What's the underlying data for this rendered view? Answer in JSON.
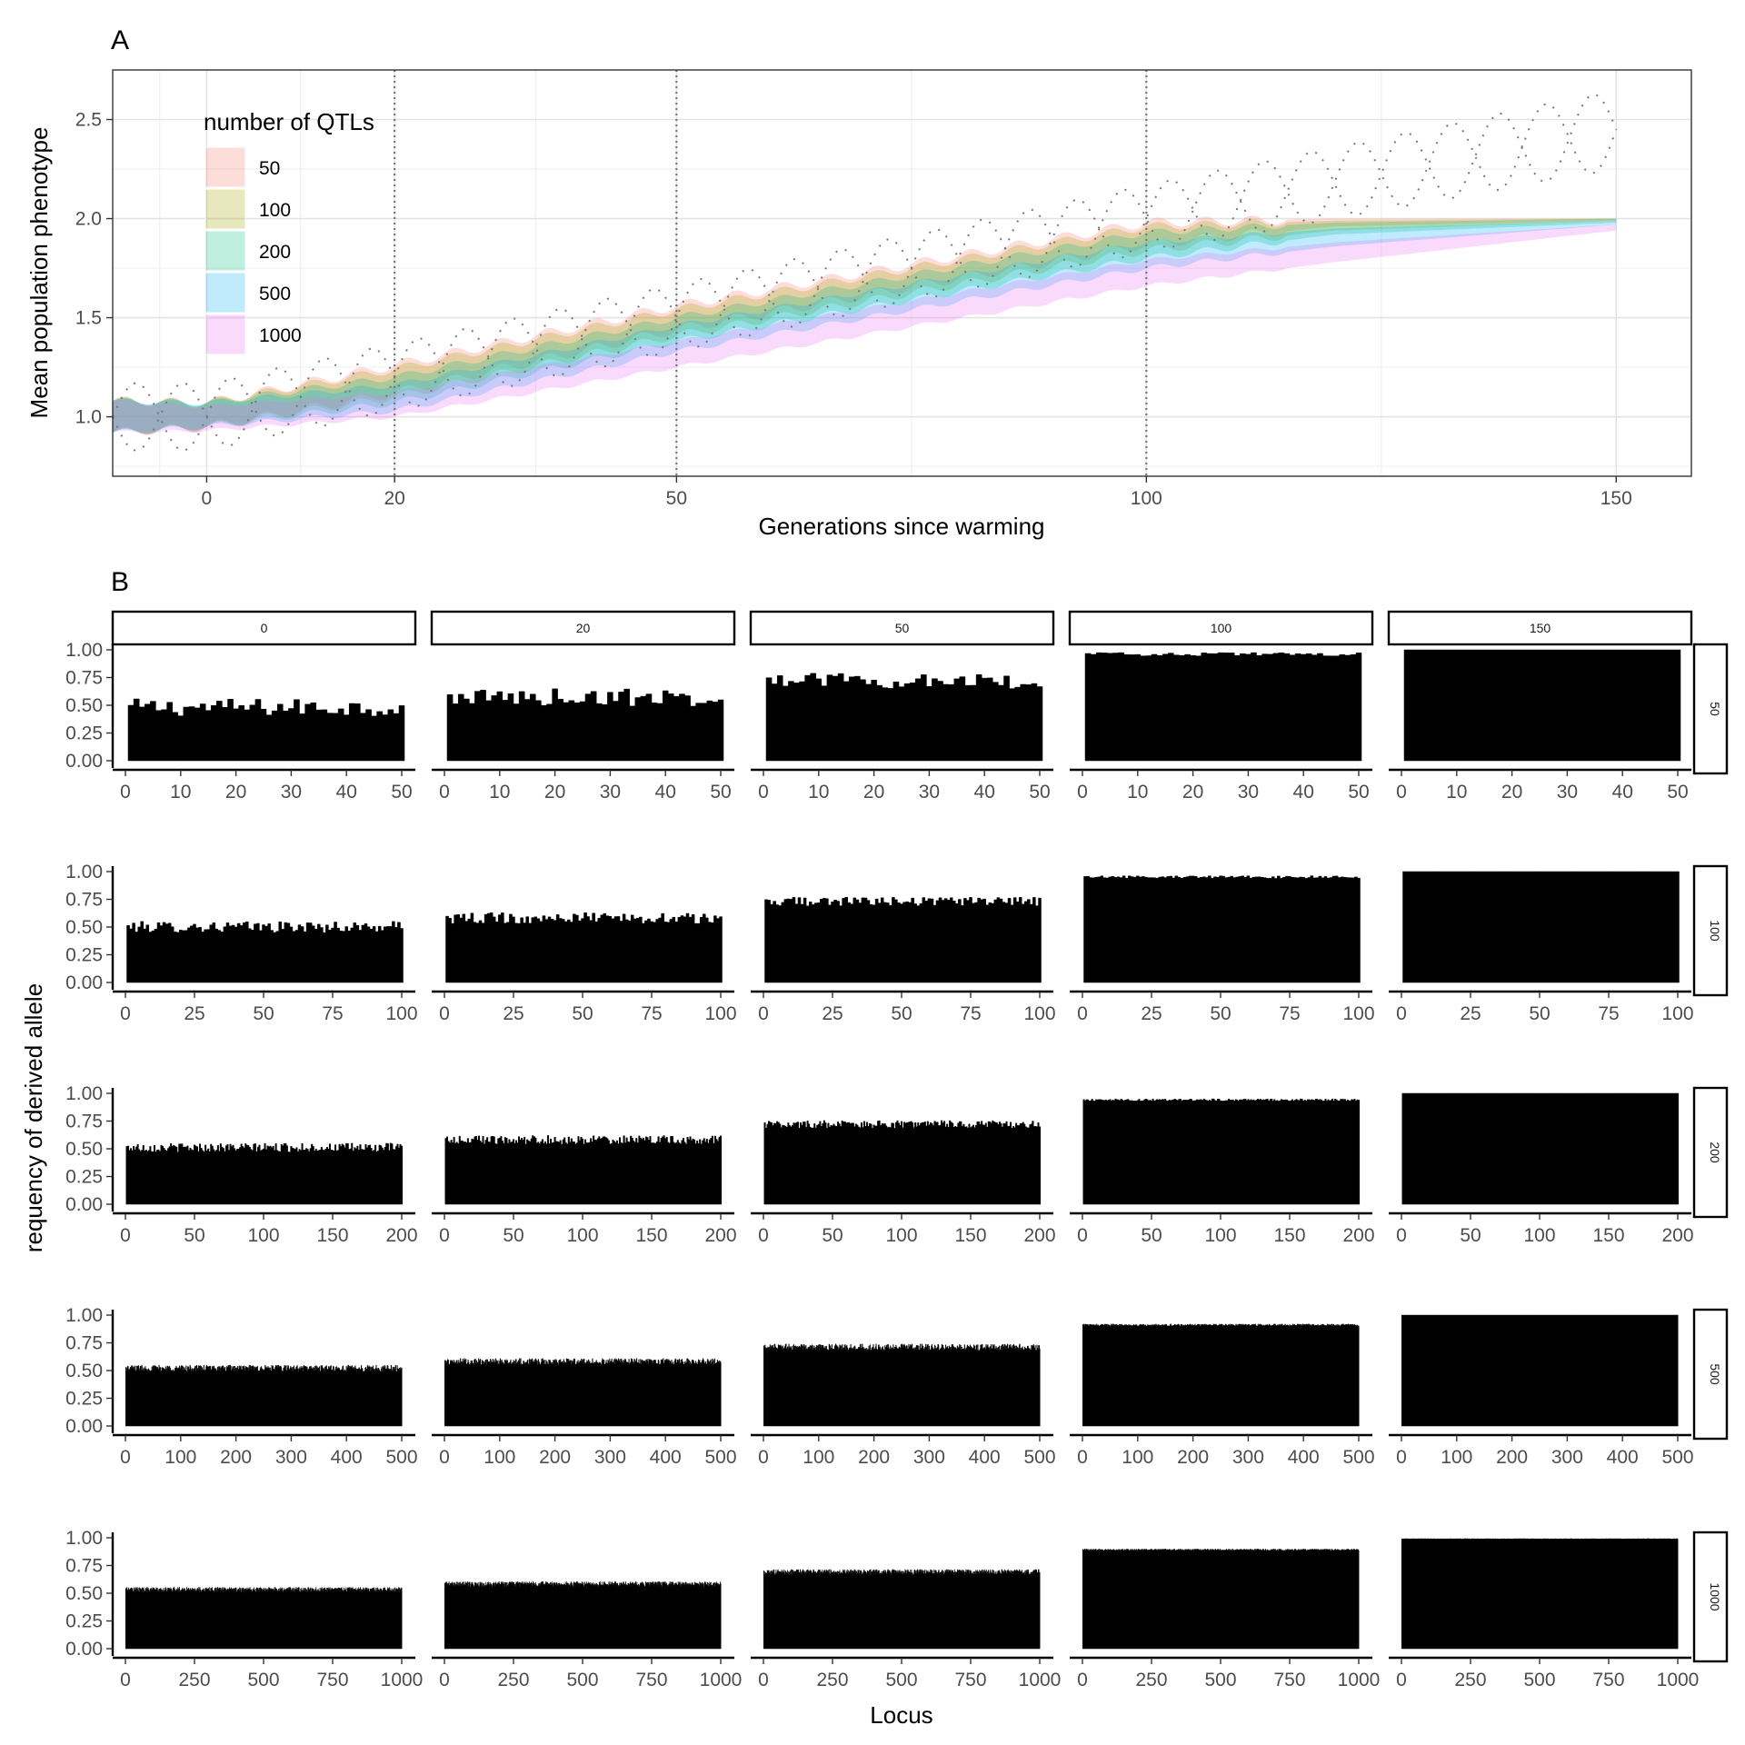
{
  "chart_data": [
    {
      "type": "area",
      "panel_label": "A",
      "xlabel": "Generations since warming",
      "ylabel": "Mean population phenotype",
      "xlim": [
        -10,
        158
      ],
      "ylim": [
        0.7,
        2.75
      ],
      "x_ticks": [
        0,
        20,
        50,
        100,
        150
      ],
      "x_tick_labels": [
        "0",
        "20",
        "50",
        "100",
        "150"
      ],
      "y_ticks": [
        1.0,
        1.5,
        2.0,
        2.5
      ],
      "y_tick_labels": [
        "1.0",
        "1.5",
        "2.0",
        "2.5"
      ],
      "vlines": [
        20,
        50,
        100
      ],
      "grid": true,
      "legend": {
        "title": "number of QTLs",
        "position": "top-left"
      },
      "series": [
        {
          "name": "50",
          "color": "#f8766d",
          "x": [
            -10,
            0,
            20,
            50,
            100,
            120,
            150
          ],
          "lower": [
            0.92,
            0.95,
            1.12,
            1.44,
            1.87,
            1.96,
            1.99
          ],
          "upper": [
            1.08,
            1.07,
            1.26,
            1.56,
            1.98,
            2.0,
            2.0
          ]
        },
        {
          "name": "100",
          "color": "#a3a500",
          "x": [
            -10,
            0,
            20,
            50,
            100,
            120,
            150
          ],
          "lower": [
            0.92,
            0.95,
            1.1,
            1.41,
            1.84,
            1.94,
            1.99
          ],
          "upper": [
            1.08,
            1.07,
            1.24,
            1.54,
            1.96,
            1.99,
            2.0
          ]
        },
        {
          "name": "200",
          "color": "#00bf7d",
          "x": [
            -10,
            0,
            20,
            50,
            100,
            120,
            150
          ],
          "lower": [
            0.92,
            0.95,
            1.07,
            1.38,
            1.8,
            1.92,
            1.98
          ],
          "upper": [
            1.08,
            1.07,
            1.2,
            1.5,
            1.93,
            1.98,
            2.0
          ]
        },
        {
          "name": "500",
          "color": "#00b0f6",
          "x": [
            -10,
            0,
            20,
            50,
            100,
            120,
            150
          ],
          "lower": [
            0.92,
            0.95,
            1.03,
            1.33,
            1.75,
            1.86,
            1.97
          ],
          "upper": [
            1.08,
            1.07,
            1.16,
            1.46,
            1.88,
            1.95,
            1.99
          ]
        },
        {
          "name": "1000",
          "color": "#e76bf3",
          "x": [
            -10,
            0,
            20,
            50,
            100,
            120,
            150
          ],
          "lower": [
            0.92,
            0.93,
            1.0,
            1.25,
            1.66,
            1.78,
            1.94
          ],
          "upper": [
            1.08,
            1.05,
            1.12,
            1.38,
            1.79,
            1.88,
            1.97
          ]
        }
      ],
      "environment_optimum": {
        "style": "dotted",
        "x": [
          -10,
          0,
          20,
          50,
          100,
          150
        ],
        "mean": [
          1.0,
          1.0,
          1.2,
          1.5,
          2.0,
          2.45
        ],
        "amplitude": [
          0.17,
          0.17,
          0.17,
          0.17,
          0.17,
          0.2
        ]
      }
    },
    {
      "type": "bar",
      "panel_label": "B",
      "xlabel": "Locus",
      "ylabel": "requency of derived allele",
      "ylim": [
        0,
        1.0
      ],
      "y_tick_labels": [
        "0.00",
        "0.25",
        "0.50",
        "0.75",
        "1.00"
      ],
      "y_ticks": [
        0,
        0.25,
        0.5,
        0.75,
        1.0
      ],
      "column_facets": [
        "0",
        "20",
        "50",
        "100",
        "150"
      ],
      "row_facets": [
        {
          "label": "50",
          "n_loci": 50,
          "x_ticks": [
            0,
            10,
            20,
            30,
            40,
            50
          ],
          "x_tick_labels": [
            "0",
            "10",
            "20",
            "30",
            "40",
            "50"
          ]
        },
        {
          "label": "100",
          "n_loci": 100,
          "x_ticks": [
            0,
            25,
            50,
            75,
            100
          ],
          "x_tick_labels": [
            "0",
            "25",
            "50",
            "75",
            "100"
          ]
        },
        {
          "label": "200",
          "n_loci": 200,
          "x_ticks": [
            0,
            50,
            100,
            150,
            200
          ],
          "x_tick_labels": [
            "0",
            "50",
            "100",
            "150",
            "200"
          ]
        },
        {
          "label": "500",
          "n_loci": 500,
          "x_ticks": [
            0,
            100,
            200,
            300,
            400,
            500
          ],
          "x_tick_labels": [
            "0",
            "100",
            "200",
            "300",
            "400",
            "500"
          ]
        },
        {
          "label": "1000",
          "n_loci": 1000,
          "x_ticks": [
            0,
            250,
            500,
            750,
            1000
          ],
          "x_tick_labels": [
            "0",
            "250",
            "500",
            "750",
            "1000"
          ]
        }
      ],
      "mean_frequency": [
        [
          0.48,
          0.57,
          0.72,
          0.96,
          1.0
        ],
        [
          0.5,
          0.58,
          0.73,
          0.95,
          1.0
        ],
        [
          0.51,
          0.58,
          0.72,
          0.94,
          1.0
        ],
        [
          0.52,
          0.58,
          0.71,
          0.91,
          1.0
        ],
        [
          0.53,
          0.58,
          0.69,
          0.89,
          0.99
        ]
      ],
      "frequency_spread": [
        [
          0.08,
          0.08,
          0.07,
          0.015,
          0.0
        ],
        [
          0.05,
          0.05,
          0.04,
          0.012,
          0.0
        ],
        [
          0.04,
          0.04,
          0.035,
          0.01,
          0.0
        ],
        [
          0.03,
          0.03,
          0.03,
          0.01,
          0.0
        ],
        [
          0.025,
          0.025,
          0.025,
          0.01,
          0.003
        ]
      ]
    }
  ]
}
